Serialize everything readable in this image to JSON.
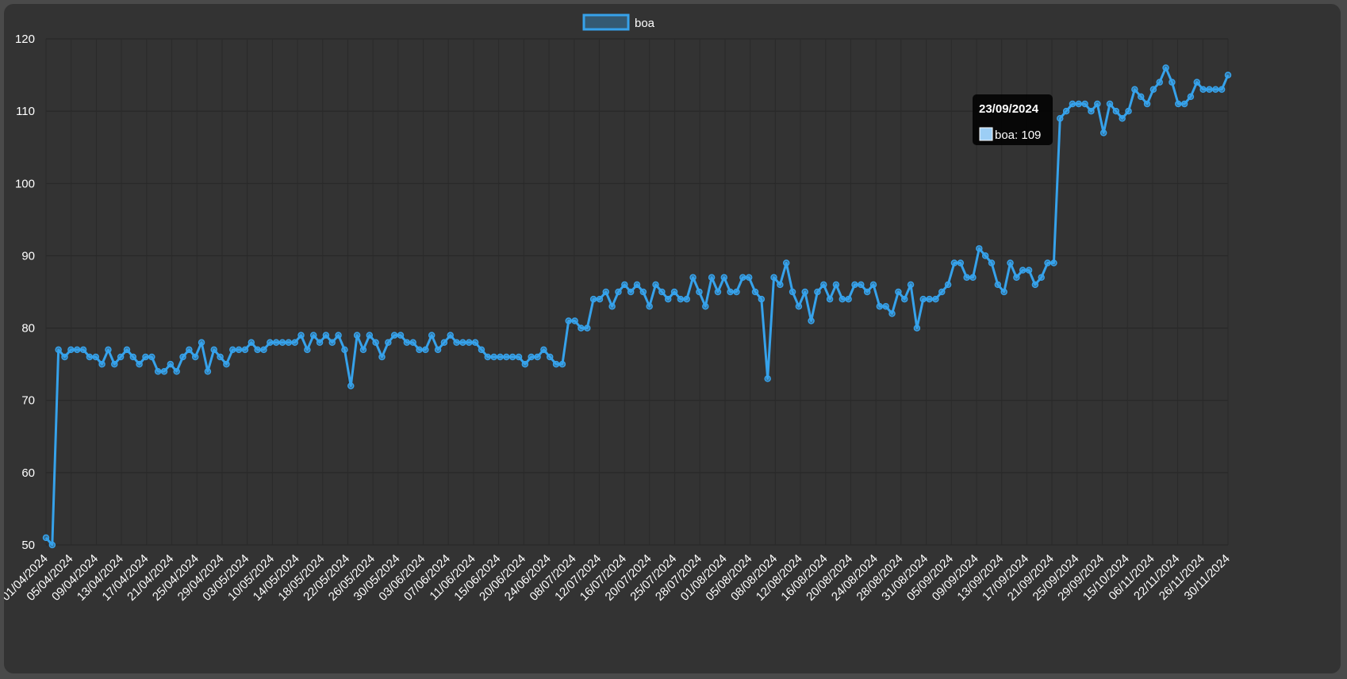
{
  "chart_data": {
    "type": "line",
    "title": "",
    "xlabel": "",
    "ylabel": "",
    "ylim": [
      50,
      120
    ],
    "yticks": [
      50,
      60,
      70,
      80,
      90,
      100,
      110,
      120
    ],
    "grid": true,
    "legend_position": "top-center",
    "xticks": [
      "01/04/2024",
      "05/04/2024",
      "09/04/2024",
      "13/04/2024",
      "17/04/2024",
      "21/04/2024",
      "25/04/2024",
      "29/04/2024",
      "03/05/2024",
      "10/05/2024",
      "14/05/2024",
      "18/05/2024",
      "22/05/2024",
      "26/05/2024",
      "30/05/2024",
      "03/06/2024",
      "07/06/2024",
      "11/06/2024",
      "15/06/2024",
      "20/06/2024",
      "24/06/2024",
      "08/07/2024",
      "12/07/2024",
      "16/07/2024",
      "20/07/2024",
      "25/07/2024",
      "28/07/2024",
      "01/08/2024",
      "05/08/2024",
      "08/08/2024",
      "12/08/2024",
      "16/08/2024",
      "20/08/2024",
      "24/08/2024",
      "28/08/2024",
      "31/08/2024",
      "05/09/2024",
      "09/09/2024",
      "13/09/2024",
      "17/09/2024",
      "21/09/2024",
      "25/09/2024",
      "29/09/2024",
      "15/10/2024",
      "06/11/2024",
      "22/11/2024",
      "26/11/2024",
      "30/11/2024"
    ],
    "series": [
      {
        "name": "boa",
        "color": "#36a2eb",
        "values": [
          51,
          50,
          77,
          76,
          77,
          77,
          77,
          76,
          76,
          75,
          77,
          75,
          76,
          77,
          76,
          75,
          76,
          76,
          74,
          74,
          75,
          74,
          76,
          77,
          76,
          78,
          74,
          77,
          76,
          75,
          77,
          77,
          77,
          78,
          77,
          77,
          78,
          78,
          78,
          78,
          78,
          79,
          77,
          79,
          78,
          79,
          78,
          79,
          77,
          72,
          79,
          77,
          79,
          78,
          76,
          78,
          79,
          79,
          78,
          78,
          77,
          77,
          79,
          77,
          78,
          79,
          78,
          78,
          78,
          78,
          77,
          76,
          76,
          76,
          76,
          76,
          76,
          75,
          76,
          76,
          77,
          76,
          75,
          75,
          81,
          81,
          80,
          80,
          84,
          84,
          85,
          83,
          85,
          86,
          85,
          86,
          85,
          83,
          86,
          85,
          84,
          85,
          84,
          84,
          87,
          85,
          83,
          87,
          85,
          87,
          85,
          85,
          87,
          87,
          85,
          84,
          73,
          87,
          86,
          89,
          85,
          83,
          85,
          81,
          85,
          86,
          84,
          86,
          84,
          84,
          86,
          86,
          85,
          86,
          83,
          83,
          82,
          85,
          84,
          86,
          80,
          84,
          84,
          84,
          85,
          86,
          89,
          89,
          87,
          87,
          91,
          90,
          89,
          86,
          85,
          89,
          87,
          88,
          88,
          86,
          87,
          89,
          89,
          109,
          110,
          111,
          111,
          111,
          110,
          111,
          107,
          111,
          110,
          109,
          110,
          113,
          112,
          111,
          113,
          114,
          116,
          114,
          111,
          111,
          112,
          114,
          113,
          113,
          113,
          113,
          115
        ]
      }
    ],
    "tooltip": {
      "title": "23/09/2024",
      "label": "boa: 109",
      "point_index": 163
    }
  }
}
